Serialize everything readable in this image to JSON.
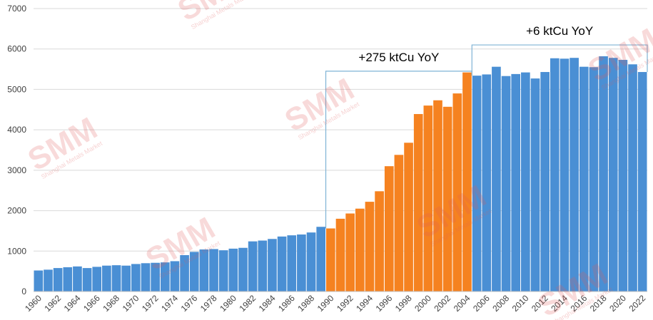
{
  "chart_data": {
    "type": "bar",
    "title": "",
    "xlabel": "",
    "ylabel": "",
    "ylim": [
      0,
      7000
    ],
    "yticks": [
      0,
      1000,
      2000,
      3000,
      4000,
      5000,
      6000,
      7000
    ],
    "grid": true,
    "legend": "none",
    "x": [
      1960,
      1961,
      1962,
      1963,
      1964,
      1965,
      1966,
      1967,
      1968,
      1969,
      1970,
      1971,
      1972,
      1973,
      1974,
      1975,
      1976,
      1977,
      1978,
      1979,
      1980,
      1981,
      1982,
      1983,
      1984,
      1985,
      1986,
      1987,
      1988,
      1989,
      1990,
      1991,
      1992,
      1993,
      1994,
      1995,
      1996,
      1997,
      1998,
      1999,
      2000,
      2001,
      2002,
      2003,
      2004,
      2005,
      2006,
      2007,
      2008,
      2009,
      2010,
      2011,
      2012,
      2013,
      2014,
      2015,
      2016,
      2017,
      2018,
      2019,
      2020,
      2021,
      2022
    ],
    "xtick_labels": [
      "1960",
      "1962",
      "1964",
      "1966",
      "1968",
      "1970",
      "1972",
      "1974",
      "1976",
      "1978",
      "1980",
      "1982",
      "1984",
      "1986",
      "1988",
      "1990",
      "1992",
      "1994",
      "1996",
      "1998",
      "2000",
      "2002",
      "2004",
      "2006",
      "2008",
      "2010",
      "2012",
      "2014",
      "2016",
      "2018",
      "2020",
      "2022"
    ],
    "values": [
      520,
      540,
      580,
      600,
      620,
      580,
      610,
      640,
      650,
      640,
      680,
      700,
      710,
      720,
      750,
      900,
      980,
      1040,
      1050,
      1020,
      1060,
      1080,
      1240,
      1260,
      1300,
      1360,
      1390,
      1410,
      1460,
      1600,
      1560,
      1800,
      1930,
      2050,
      2220,
      2480,
      3100,
      3380,
      3680,
      4390,
      4600,
      4730,
      4570,
      4900,
      5420,
      5340,
      5370,
      5560,
      5330,
      5380,
      5420,
      5270,
      5430,
      5770,
      5760,
      5780,
      5560,
      5550,
      5820,
      5780,
      5730,
      5620,
      5430
    ],
    "colors": {
      "default": "#4a8fd4",
      "highlight": "#f58220",
      "bracket": "#7fb3d5",
      "grid": "#d9d9d9"
    },
    "highlight_range": [
      1990,
      2004
    ],
    "annotations": [
      {
        "text": "+275 ktCu YoY",
        "from": 1990,
        "to": 2004,
        "level": 5450
      },
      {
        "text": "+6 ktCu YoY",
        "from": 2005,
        "to": 2022,
        "level": 6100
      }
    ]
  },
  "watermark": {
    "text": "SMM",
    "subtext": "Shanghai Metals Market"
  }
}
